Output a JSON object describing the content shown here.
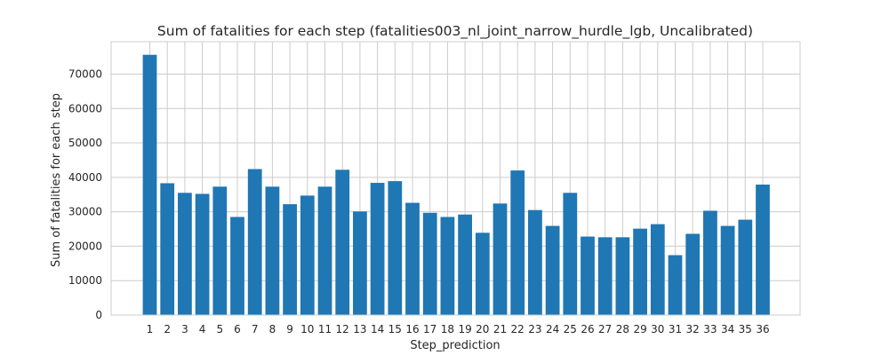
{
  "chart_data": {
    "type": "bar",
    "title": "Sum of fatalities for each step (fatalities003_nl_joint_narrow_hurdle_lgb, Uncalibrated)",
    "xlabel": "Step_prediction",
    "ylabel": "Sum of fatalities for each step",
    "categories": [
      "1",
      "2",
      "3",
      "4",
      "5",
      "6",
      "7",
      "8",
      "9",
      "10",
      "11",
      "12",
      "13",
      "14",
      "15",
      "16",
      "17",
      "18",
      "19",
      "20",
      "21",
      "22",
      "23",
      "24",
      "25",
      "26",
      "27",
      "28",
      "29",
      "30",
      "31",
      "32",
      "33",
      "34",
      "35",
      "36"
    ],
    "values": [
      75600,
      38300,
      35500,
      35200,
      37300,
      28500,
      42400,
      37300,
      32200,
      34700,
      37300,
      42200,
      30100,
      38400,
      38900,
      32600,
      29700,
      28500,
      29200,
      23900,
      32400,
      42000,
      30500,
      25900,
      35500,
      22800,
      22600,
      22600,
      25100,
      26400,
      17400,
      23600,
      30300,
      25900,
      27700,
      37900
    ],
    "yticks": [
      0,
      10000,
      20000,
      30000,
      40000,
      50000,
      60000,
      70000
    ],
    "ylim": [
      0,
      79400
    ],
    "grid": true,
    "bar_color": "#1f77b4"
  }
}
